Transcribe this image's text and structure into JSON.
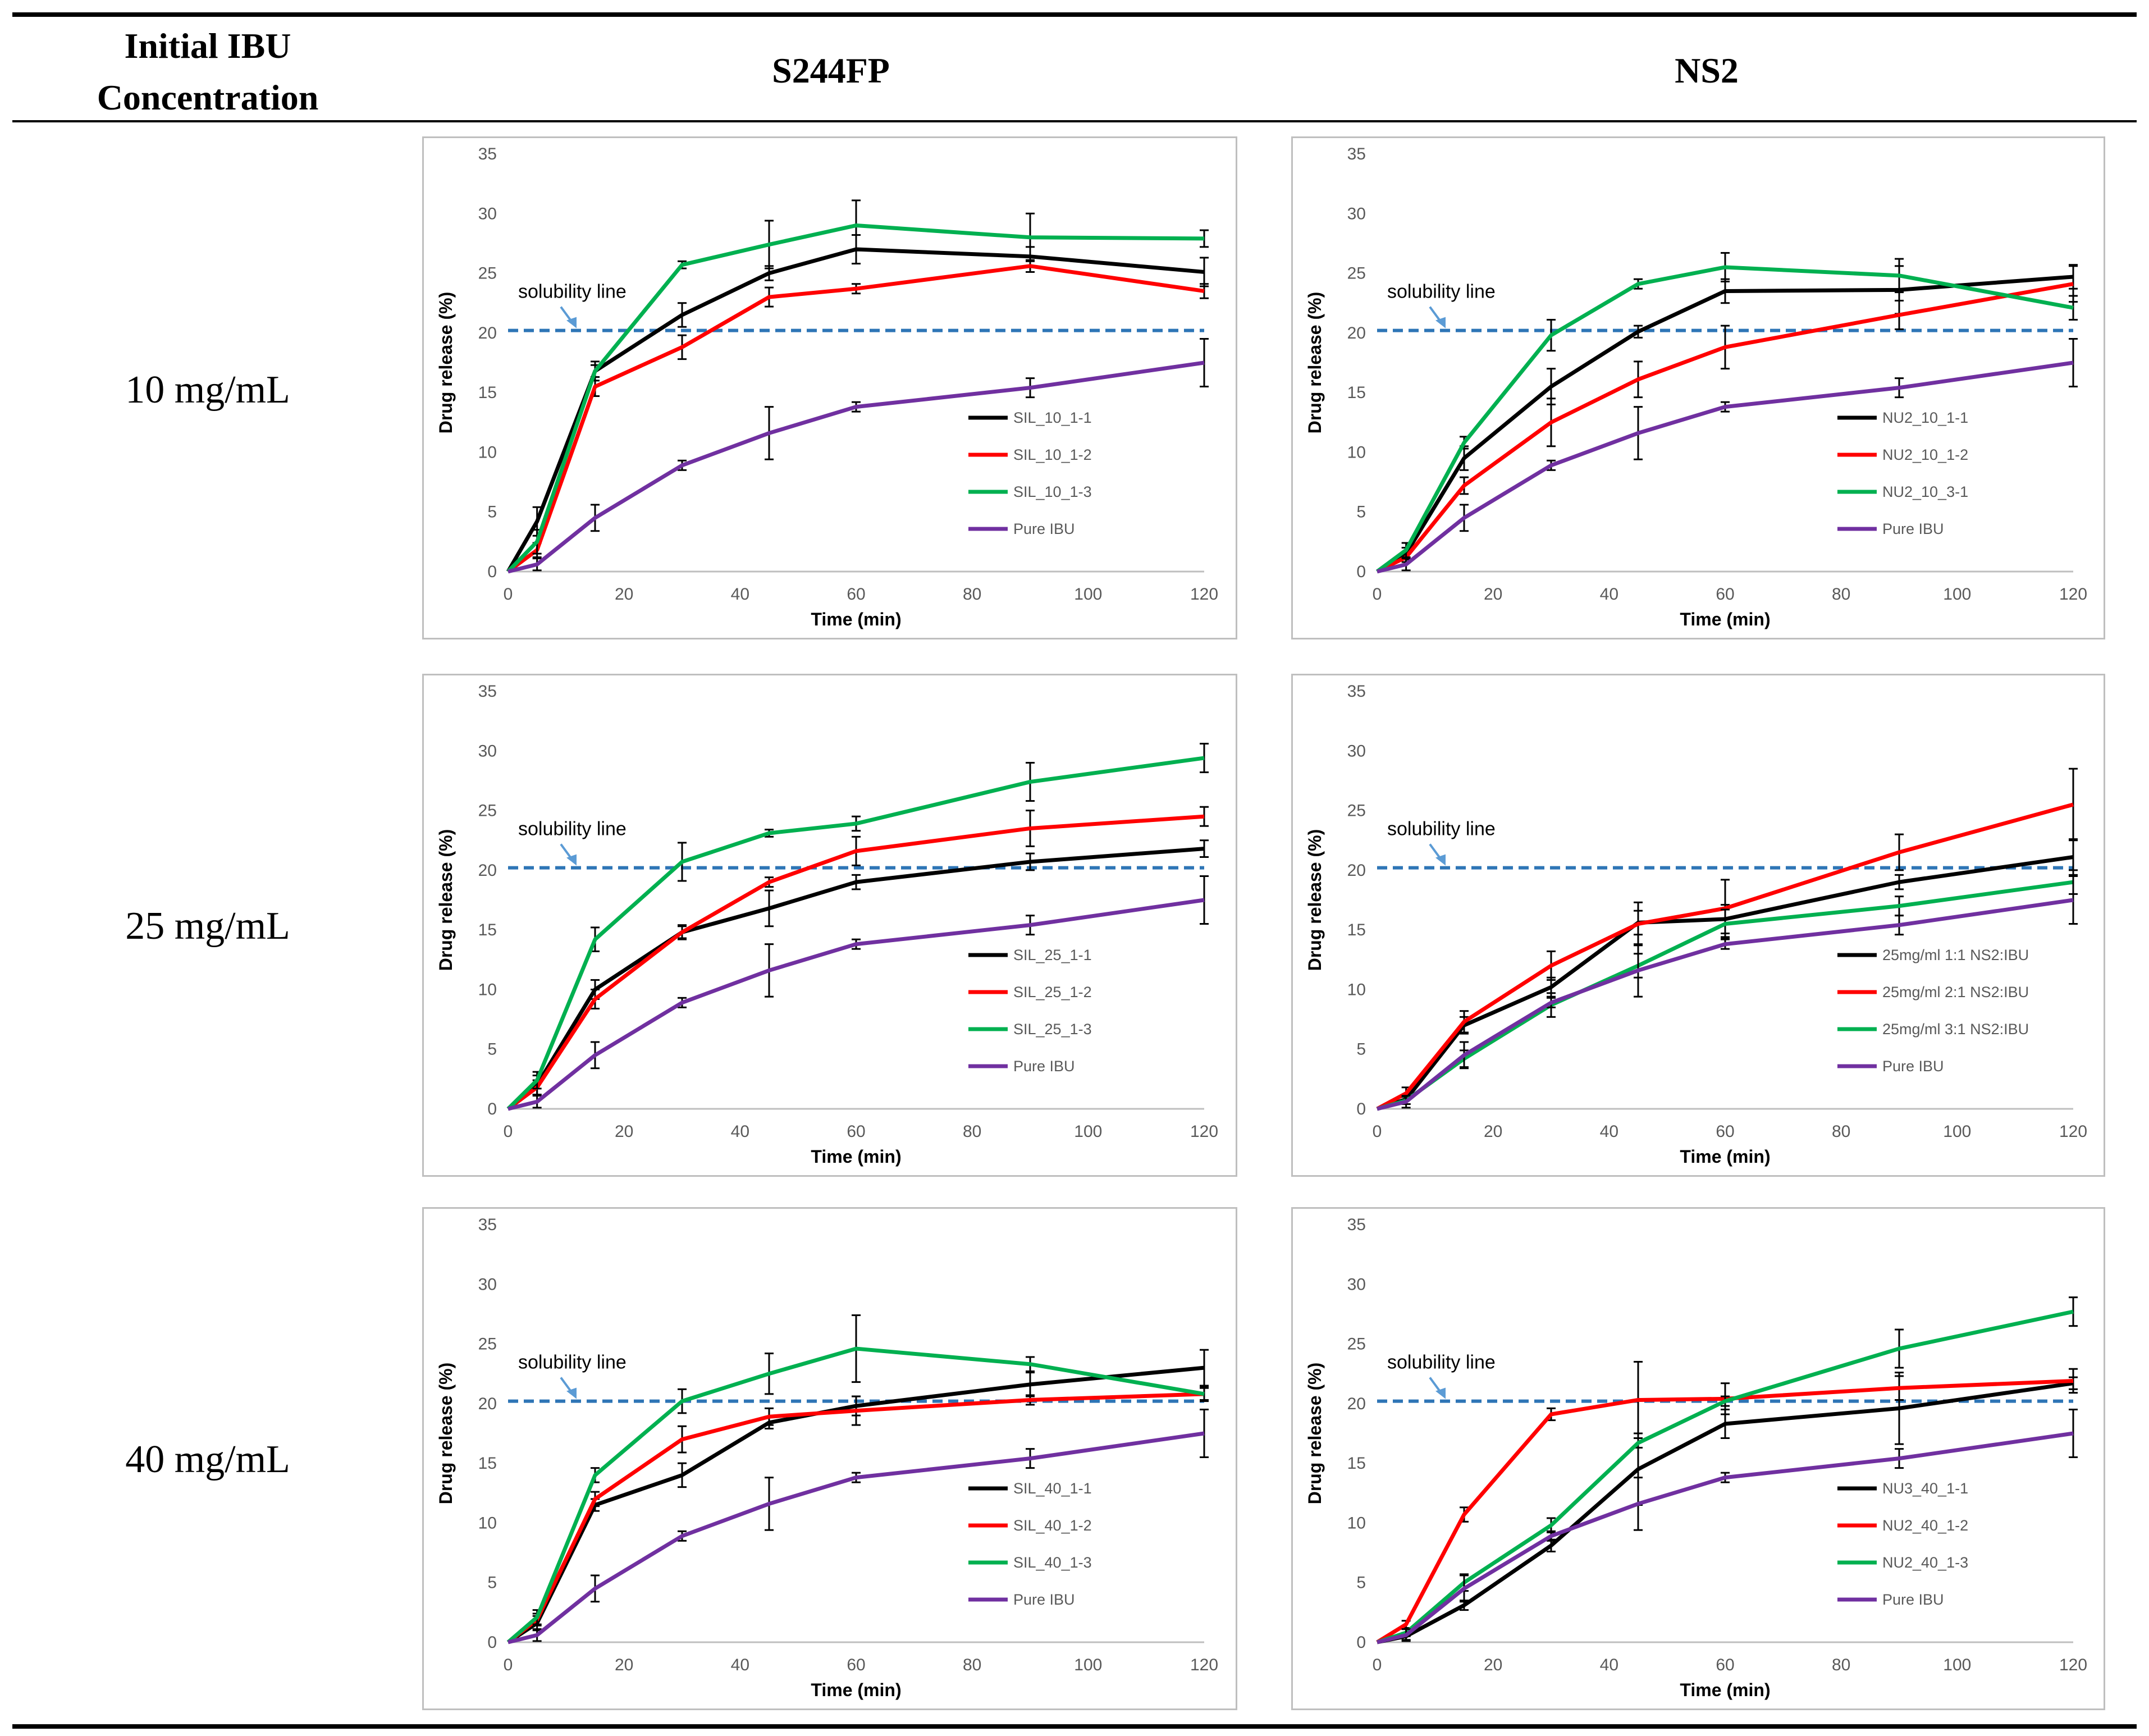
{
  "table": {
    "headers": [
      "Initial IBU Concentration",
      "S244FP",
      "NS2"
    ],
    "header_line1": "Initial IBU",
    "header_line2": "Concentration",
    "rows": [
      "10 mg/mL",
      "25 mg/mL",
      "40 mg/mL"
    ]
  },
  "colors": {
    "black": "#000000",
    "red": "#ff0000",
    "green": "#00b050",
    "purple": "#7030a0",
    "solubility": "#2e75b6",
    "annotation_arrow": "#5b9bd5"
  },
  "chart_data": [
    {
      "type": "line",
      "id": "s244fp-10",
      "xlabel": "Time (min)",
      "ylabel": "Drug release (%)",
      "xlim": [
        0,
        120
      ],
      "ylim": [
        0,
        35
      ],
      "xticks": [
        0,
        20,
        40,
        60,
        80,
        100,
        120
      ],
      "yticks": [
        0,
        5,
        10,
        15,
        20,
        25,
        30,
        35
      ],
      "x": [
        0,
        5,
        15,
        30,
        45,
        60,
        90,
        120
      ],
      "solubility_line": 20.2,
      "annotation": "solubility line",
      "series": [
        {
          "name": "SIL_10_1-1",
          "color": "black",
          "values": [
            0,
            4.2,
            16.8,
            21.5,
            25.0,
            27.0,
            26.4,
            25.1
          ],
          "errors": [
            0,
            1.2,
            0.5,
            1.0,
            0.6,
            1.2,
            0.8,
            1.2
          ]
        },
        {
          "name": "SIL_10_1-2",
          "color": "red",
          "values": [
            0,
            1.8,
            15.5,
            18.8,
            23.0,
            23.7,
            25.6,
            23.5
          ],
          "errors": [
            0,
            0.6,
            0.8,
            1.0,
            0.8,
            0.4,
            0.5,
            0.6
          ]
        },
        {
          "name": "SIL_10_1-3",
          "color": "green",
          "values": [
            0,
            2.5,
            16.8,
            25.7,
            27.4,
            29.0,
            28.0,
            27.9
          ],
          "errors": [
            0,
            1.0,
            0.8,
            0.3,
            2.0,
            2.1,
            2.0,
            0.7
          ]
        },
        {
          "name": "Pure IBU",
          "color": "purple",
          "values": [
            0,
            0.6,
            4.5,
            8.9,
            11.6,
            13.8,
            15.4,
            17.5
          ],
          "errors": [
            0,
            0.5,
            1.1,
            0.4,
            2.2,
            0.4,
            0.8,
            2.0
          ]
        }
      ]
    },
    {
      "type": "line",
      "id": "ns2-10",
      "xlabel": "Time (min)",
      "ylabel": "Drug release (%)",
      "xlim": [
        0,
        120
      ],
      "ylim": [
        0,
        35
      ],
      "xticks": [
        0,
        20,
        40,
        60,
        80,
        100,
        120
      ],
      "yticks": [
        0,
        5,
        10,
        15,
        20,
        25,
        30,
        35
      ],
      "x": [
        0,
        5,
        15,
        30,
        45,
        60,
        90,
        120
      ],
      "solubility_line": 20.2,
      "annotation": "solubility line",
      "series": [
        {
          "name": "NU2_10_1-1",
          "color": "black",
          "values": [
            0,
            1.5,
            9.5,
            15.5,
            20.1,
            23.5,
            23.6,
            24.7
          ],
          "errors": [
            0,
            0.5,
            1.0,
            1.5,
            0.5,
            1.0,
            2.0,
            1.0
          ]
        },
        {
          "name": "NU2_10_1-2",
          "color": "red",
          "values": [
            0,
            1.2,
            7.2,
            12.5,
            16.1,
            18.8,
            21.5,
            24.1
          ],
          "errors": [
            0,
            0.4,
            0.7,
            2.0,
            1.5,
            1.8,
            1.2,
            1.5
          ]
        },
        {
          "name": "NU2_10_3-1",
          "color": "green",
          "values": [
            0,
            1.8,
            10.8,
            19.8,
            24.1,
            25.5,
            24.8,
            22.1
          ],
          "errors": [
            0,
            0.6,
            0.5,
            1.3,
            0.4,
            1.2,
            1.4,
            1.0
          ]
        },
        {
          "name": "Pure IBU",
          "color": "purple",
          "values": [
            0,
            0.6,
            4.5,
            8.9,
            11.6,
            13.8,
            15.4,
            17.5
          ],
          "errors": [
            0,
            0.5,
            1.1,
            0.4,
            2.2,
            0.4,
            0.8,
            2.0
          ]
        }
      ]
    },
    {
      "type": "line",
      "id": "s244fp-25",
      "xlabel": "Time (min)",
      "ylabel": "Drug release (%)",
      "xlim": [
        0,
        120
      ],
      "ylim": [
        0,
        35
      ],
      "xticks": [
        0,
        20,
        40,
        60,
        80,
        100,
        120
      ],
      "yticks": [
        0,
        5,
        10,
        15,
        20,
        25,
        30,
        35
      ],
      "x": [
        0,
        5,
        15,
        30,
        45,
        60,
        90,
        120
      ],
      "solubility_line": 20.2,
      "annotation": "solubility line",
      "series": [
        {
          "name": "SIL_25_1-1",
          "color": "black",
          "values": [
            0,
            2.0,
            10.0,
            14.8,
            16.8,
            19.0,
            20.7,
            21.8
          ],
          "errors": [
            0,
            0.8,
            0.8,
            0.5,
            1.5,
            0.6,
            0.7,
            0.7
          ]
        },
        {
          "name": "SIL_25_1-2",
          "color": "red",
          "values": [
            0,
            1.8,
            9.2,
            14.8,
            19.0,
            21.6,
            23.5,
            24.5
          ],
          "errors": [
            0,
            0.6,
            0.8,
            0.6,
            0.4,
            1.2,
            1.5,
            0.8
          ]
        },
        {
          "name": "SIL_25_1-3",
          "color": "green",
          "values": [
            0,
            2.4,
            14.2,
            20.7,
            23.1,
            23.9,
            27.4,
            29.4
          ],
          "errors": [
            0,
            0.7,
            1.0,
            1.6,
            0.3,
            0.6,
            1.6,
            1.2
          ]
        },
        {
          "name": "Pure IBU",
          "color": "purple",
          "values": [
            0,
            0.6,
            4.5,
            8.9,
            11.6,
            13.8,
            15.4,
            17.5
          ],
          "errors": [
            0,
            0.5,
            1.1,
            0.4,
            2.2,
            0.4,
            0.8,
            2.0
          ]
        }
      ]
    },
    {
      "type": "line",
      "id": "ns2-25",
      "xlabel": "Time (min)",
      "ylabel": "Drug release (%)",
      "xlim": [
        0,
        120
      ],
      "ylim": [
        0,
        35
      ],
      "xticks": [
        0,
        20,
        40,
        60,
        80,
        100,
        120
      ],
      "yticks": [
        0,
        5,
        10,
        15,
        20,
        25,
        30,
        35
      ],
      "x": [
        0,
        5,
        15,
        30,
        45,
        60,
        90,
        120
      ],
      "solubility_line": 20.2,
      "annotation": "solubility line",
      "series": [
        {
          "name": "25mg/ml 1:1 NS2:IBU",
          "color": "black",
          "values": [
            0,
            0.8,
            7.0,
            10.2,
            15.6,
            15.9,
            19.0,
            21.1
          ],
          "errors": [
            0,
            0.4,
            0.7,
            0.8,
            1.0,
            1.2,
            0.6,
            1.5
          ]
        },
        {
          "name": "25mg/ml 2:1 NS2:IBU",
          "color": "red",
          "values": [
            0,
            1.3,
            7.3,
            12.0,
            15.5,
            16.8,
            21.5,
            25.5
          ],
          "errors": [
            0,
            0.5,
            0.9,
            1.2,
            1.8,
            2.4,
            1.5,
            3.0
          ]
        },
        {
          "name": "25mg/ml 3:1 NS2:IBU",
          "color": "green",
          "values": [
            0,
            0.7,
            4.2,
            8.7,
            12.0,
            15.5,
            17.0,
            19.0
          ],
          "errors": [
            0,
            0.3,
            0.7,
            1.0,
            1.0,
            1.2,
            0.8,
            1.0
          ]
        },
        {
          "name": "Pure IBU",
          "color": "purple",
          "values": [
            0,
            0.6,
            4.5,
            8.9,
            11.6,
            13.8,
            15.4,
            17.5
          ],
          "errors": [
            0,
            0.5,
            1.1,
            0.4,
            2.2,
            0.4,
            0.8,
            2.0
          ]
        }
      ]
    },
    {
      "type": "line",
      "id": "s244fp-40",
      "xlabel": "Time (min)",
      "ylabel": "Drug release (%)",
      "xlim": [
        0,
        120
      ],
      "ylim": [
        0,
        35
      ],
      "xticks": [
        0,
        20,
        40,
        60,
        80,
        100,
        120
      ],
      "yticks": [
        0,
        5,
        10,
        15,
        20,
        25,
        30,
        35
      ],
      "x": [
        0,
        5,
        15,
        30,
        45,
        60,
        90,
        120
      ],
      "solubility_line": 20.2,
      "annotation": "solubility line",
      "series": [
        {
          "name": "SIL_40_1-1",
          "color": "black",
          "values": [
            0,
            1.6,
            11.5,
            14.0,
            18.4,
            19.8,
            21.6,
            23.0
          ],
          "errors": [
            0,
            0.6,
            0.5,
            1.0,
            0.5,
            0.8,
            1.0,
            1.5
          ]
        },
        {
          "name": "SIL_40_1-2",
          "color": "red",
          "values": [
            0,
            1.9,
            12.0,
            17.0,
            18.9,
            19.4,
            20.3,
            20.8
          ],
          "errors": [
            0,
            0.5,
            0.6,
            1.1,
            0.7,
            1.2,
            0.4,
            0.6
          ]
        },
        {
          "name": "SIL_40_1-3",
          "color": "green",
          "values": [
            0,
            2.1,
            14.0,
            20.2,
            22.5,
            24.6,
            23.3,
            20.8
          ],
          "errors": [
            0,
            0.6,
            0.6,
            1.0,
            1.7,
            2.8,
            0.6,
            0.5
          ]
        },
        {
          "name": "Pure IBU",
          "color": "purple",
          "values": [
            0,
            0.6,
            4.5,
            8.9,
            11.6,
            13.8,
            15.4,
            17.5
          ],
          "errors": [
            0,
            0.5,
            1.1,
            0.4,
            2.2,
            0.4,
            0.8,
            2.0
          ]
        }
      ]
    },
    {
      "type": "line",
      "id": "ns2-40",
      "xlabel": "Time (min)",
      "ylabel": "Drug release (%)",
      "xlim": [
        0,
        120
      ],
      "ylim": [
        0,
        35
      ],
      "xticks": [
        0,
        20,
        40,
        60,
        80,
        100,
        120
      ],
      "yticks": [
        0,
        5,
        10,
        15,
        20,
        25,
        30,
        35
      ],
      "x": [
        0,
        5,
        15,
        30,
        45,
        60,
        90,
        120
      ],
      "solubility_line": 20.2,
      "annotation": "solubility line",
      "series": [
        {
          "name": "NU3_40_1-1",
          "color": "black",
          "values": [
            0,
            0.5,
            3.1,
            8.1,
            14.5,
            18.3,
            19.6,
            21.7
          ],
          "errors": [
            0,
            0.3,
            0.4,
            0.5,
            3.0,
            1.2,
            3.0,
            0.5
          ]
        },
        {
          "name": "NU2_40_1-2",
          "color": "red",
          "values": [
            0,
            1.5,
            10.7,
            19.1,
            20.3,
            20.4,
            21.3,
            21.9
          ],
          "errors": [
            0,
            0.3,
            0.6,
            0.5,
            3.2,
            1.3,
            1.0,
            1.0
          ]
        },
        {
          "name": "NU2_40_1-3",
          "color": "green",
          "values": [
            0,
            0.8,
            5.0,
            9.8,
            16.7,
            20.2,
            24.6,
            27.7
          ],
          "errors": [
            0,
            0.3,
            0.7,
            0.6,
            0.4,
            0.4,
            1.6,
            1.2
          ]
        },
        {
          "name": "Pure IBU",
          "color": "purple",
          "values": [
            0,
            0.6,
            4.5,
            8.9,
            11.6,
            13.8,
            15.4,
            17.5
          ],
          "errors": [
            0,
            0.5,
            1.1,
            0.4,
            2.2,
            0.4,
            0.8,
            2.0
          ]
        }
      ]
    }
  ]
}
